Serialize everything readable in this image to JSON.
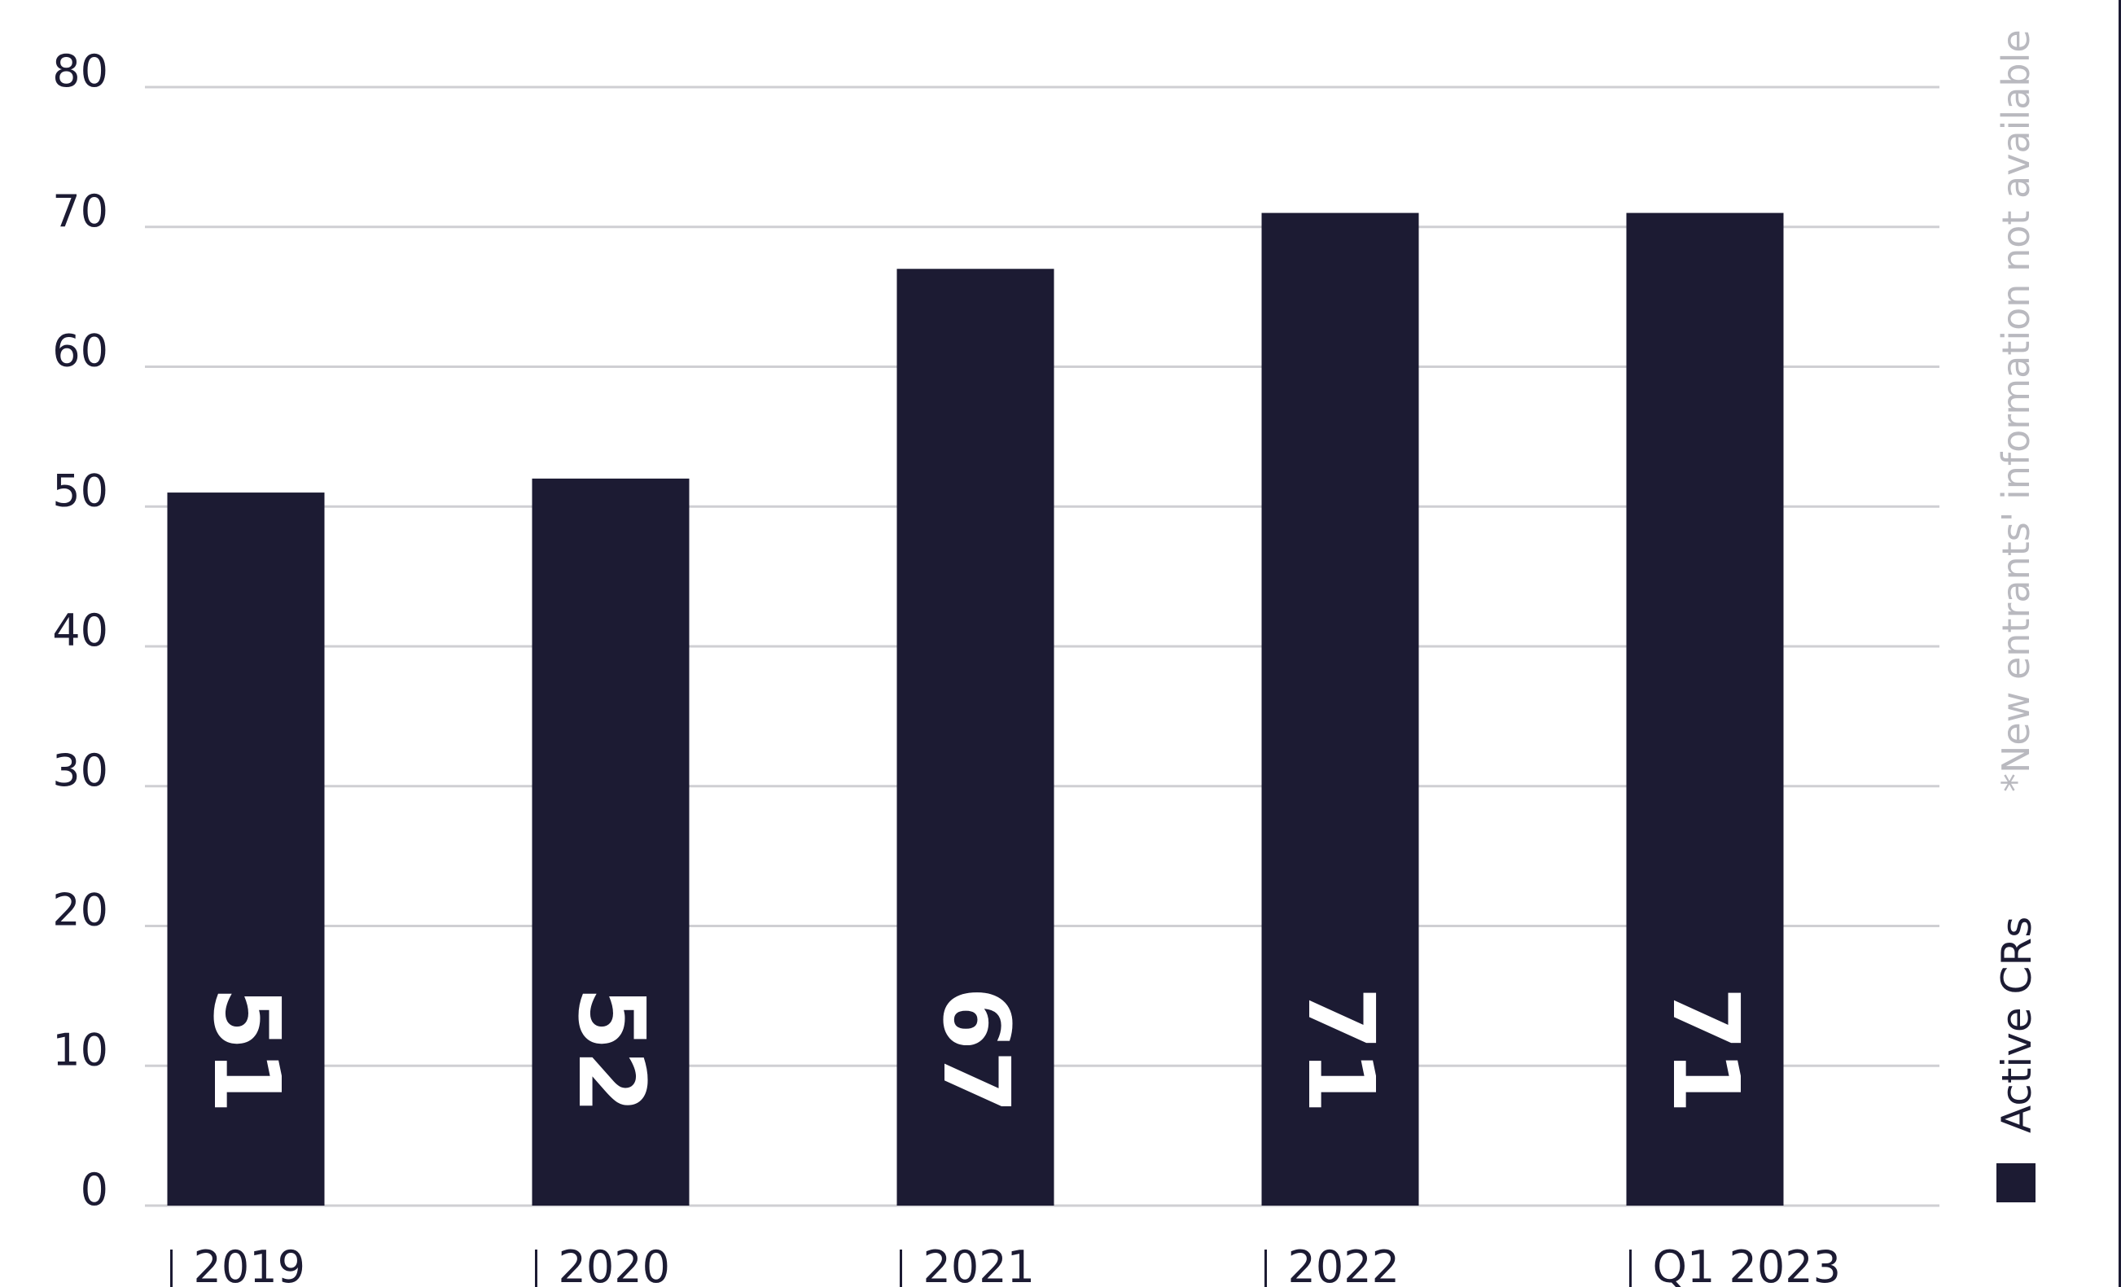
{
  "chart_data": {
    "type": "bar",
    "categories": [
      "2019",
      "2020",
      "2021",
      "2022",
      "Q1 2023"
    ],
    "series": [
      {
        "name": "Active CRs",
        "values": [
          51,
          52,
          67,
          71,
          71
        ]
      }
    ],
    "data_labels": [
      "51",
      "52",
      "67",
      "71",
      "71"
    ],
    "ylim": [
      0,
      80
    ],
    "yticks": [
      0,
      10,
      20,
      30,
      40,
      50,
      60,
      70,
      80
    ],
    "grid": true,
    "legend": {
      "label": "Active CRs",
      "placement": "right, vertical"
    },
    "note": "*New entrants' information not available",
    "colors": {
      "bar": "#1c1b33",
      "grid": "#cfcfd3",
      "text": "#1c1b33",
      "note": "#b9b9bf",
      "label": "#ffffff"
    }
  }
}
